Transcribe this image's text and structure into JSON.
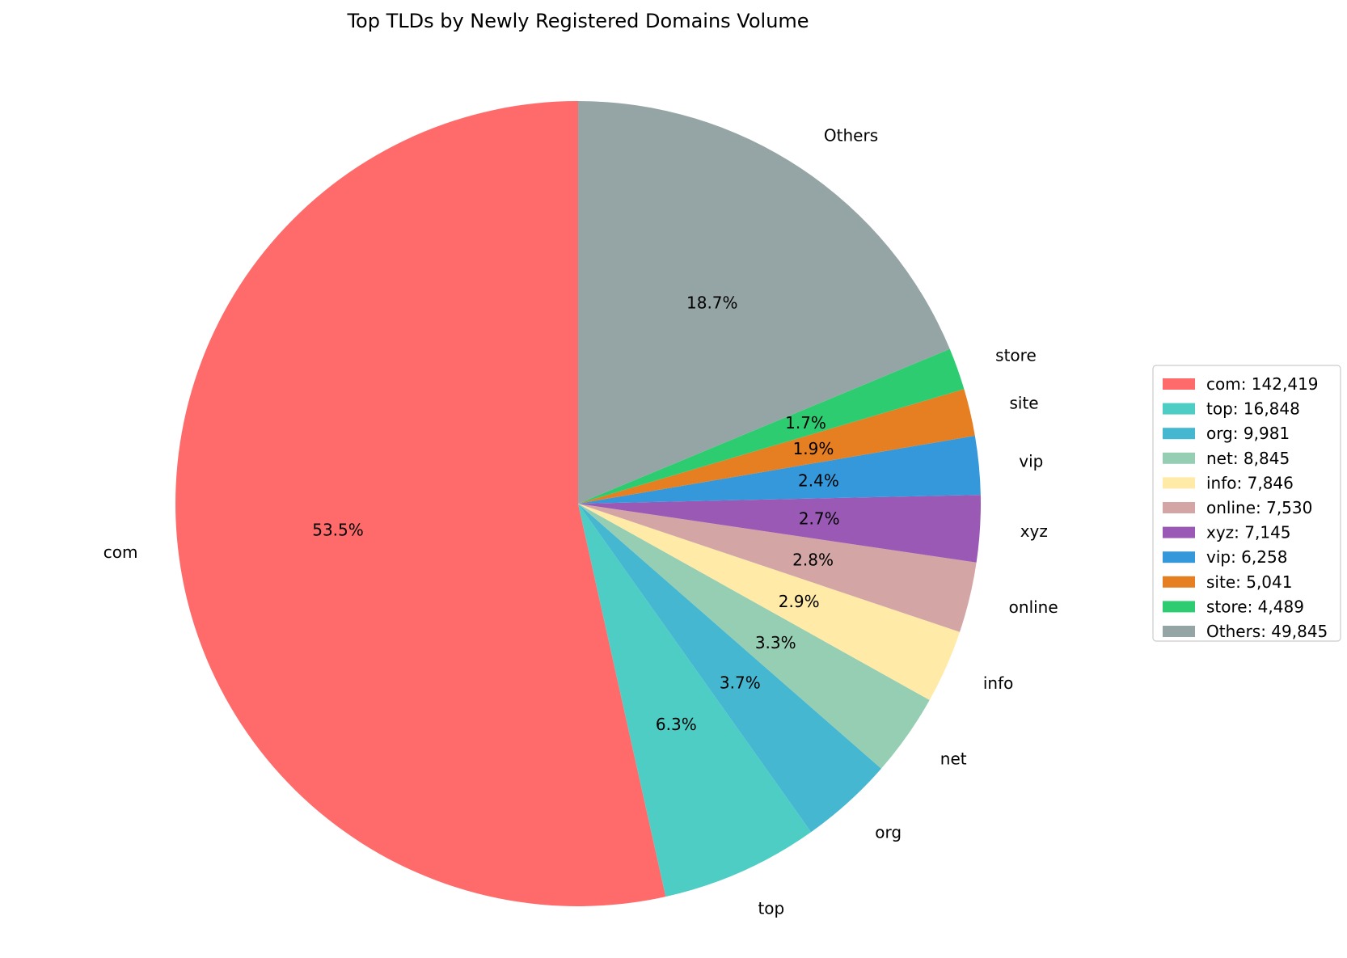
{
  "chart_data": {
    "type": "pie",
    "title": "Top TLDs by Newly Registered Domains Volume",
    "start_angle_deg": 90,
    "direction": "counterclockwise",
    "legend_position": "right",
    "slices": [
      {
        "label": "com",
        "value": 142419,
        "pct_label": "53.5%",
        "legend_label": "com: 142,419",
        "color": "#ff6b6b"
      },
      {
        "label": "top",
        "value": 16848,
        "pct_label": "6.3%",
        "legend_label": "top: 16,848",
        "color": "#4ecdc4"
      },
      {
        "label": "org",
        "value": 9981,
        "pct_label": "3.7%",
        "legend_label": "org: 9,981",
        "color": "#45b7d1"
      },
      {
        "label": "net",
        "value": 8845,
        "pct_label": "3.3%",
        "legend_label": "net: 8,845",
        "color": "#96ceb4"
      },
      {
        "label": "info",
        "value": 7846,
        "pct_label": "2.9%",
        "legend_label": "info: 7,846",
        "color": "#ffeaa7"
      },
      {
        "label": "online",
        "value": 7530,
        "pct_label": "2.8%",
        "legend_label": "online: 7,530",
        "color": "#d4a5a5"
      },
      {
        "label": "xyz",
        "value": 7145,
        "pct_label": "2.7%",
        "legend_label": "xyz: 7,145",
        "color": "#9b59b6"
      },
      {
        "label": "vip",
        "value": 6258,
        "pct_label": "2.4%",
        "legend_label": "vip: 6,258",
        "color": "#3498db"
      },
      {
        "label": "site",
        "value": 5041,
        "pct_label": "1.9%",
        "legend_label": "site: 5,041",
        "color": "#e67e22"
      },
      {
        "label": "store",
        "value": 4489,
        "pct_label": "1.7%",
        "legend_label": "store: 4,489",
        "color": "#2ecc71"
      },
      {
        "label": "Others",
        "value": 49845,
        "pct_label": "18.7%",
        "legend_label": "Others: 49,845",
        "color": "#95a5a6"
      }
    ]
  }
}
